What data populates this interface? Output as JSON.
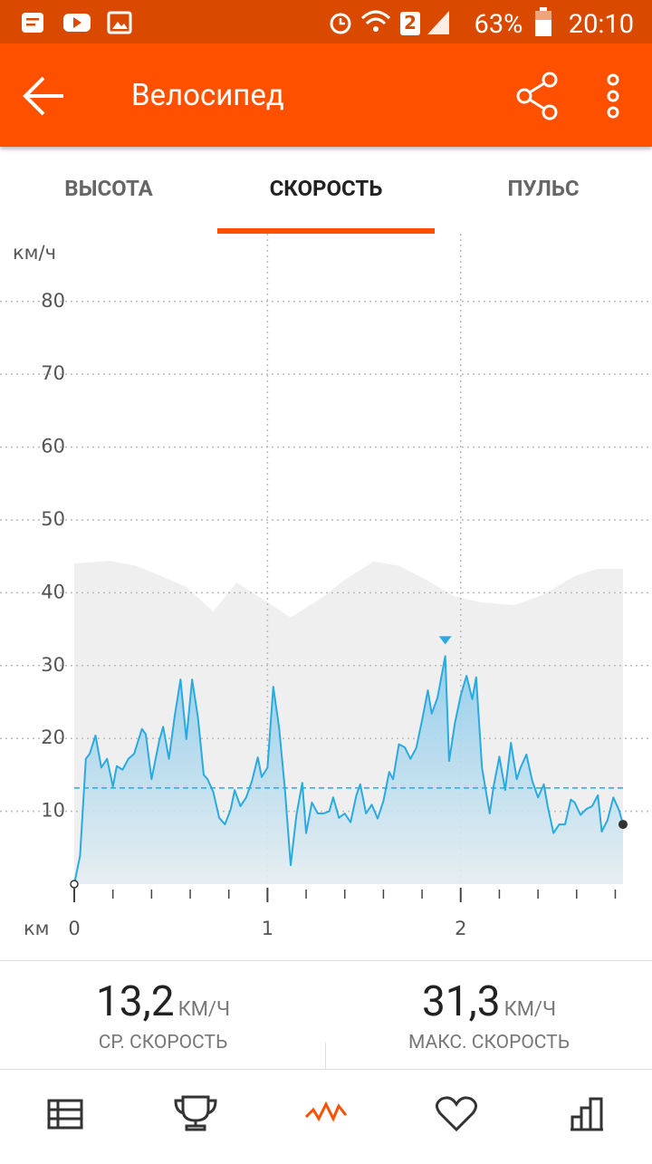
{
  "status_bar": {
    "sim": "2",
    "battery": "63%",
    "time": "20:10"
  },
  "toolbar": {
    "title": "Велосипед"
  },
  "tabs": [
    "ВЫСОТА",
    "СКОРОСТЬ",
    "ПУЛЬС"
  ],
  "chart_data": {
    "type": "area",
    "y_label": "км/ч",
    "x_label": "км",
    "xlim": [
      0,
      2.99
    ],
    "ylim": [
      0,
      89.3
    ],
    "yticks": [
      10,
      20,
      30,
      40,
      50,
      60,
      70,
      80
    ],
    "xticks": [
      0,
      1,
      2
    ],
    "x_minor_ticks": [
      0.2,
      0.4,
      0.6,
      0.8,
      1.2,
      1.4,
      1.6,
      1.8,
      2.2,
      2.4,
      2.6,
      2.8
    ],
    "grid": true,
    "speed": {
      "color": "#29aae1",
      "x": [
        0,
        0.03,
        0.06,
        0.08,
        0.11,
        0.14,
        0.17,
        0.2,
        0.22,
        0.25,
        0.28,
        0.31,
        0.35,
        0.37,
        0.4,
        0.44,
        0.46,
        0.49,
        0.52,
        0.55,
        0.58,
        0.61,
        0.64,
        0.67,
        0.69,
        0.72,
        0.75,
        0.78,
        0.81,
        0.83,
        0.86,
        0.89,
        0.92,
        0.95,
        0.97,
        1.0,
        1.03,
        1.06,
        1.09,
        1.12,
        1.15,
        1.18,
        1.2,
        1.23,
        1.26,
        1.29,
        1.32,
        1.34,
        1.37,
        1.4,
        1.43,
        1.46,
        1.48,
        1.51,
        1.54,
        1.57,
        1.6,
        1.63,
        1.65,
        1.68,
        1.71,
        1.74,
        1.77,
        1.8,
        1.83,
        1.85,
        1.88,
        1.92,
        1.94,
        1.97,
        2.0,
        2.03,
        2.06,
        2.08,
        2.11,
        2.15,
        2.17,
        2.2,
        2.23,
        2.26,
        2.29,
        2.31,
        2.34,
        2.37,
        2.4,
        2.43,
        2.45,
        2.48,
        2.51,
        2.54,
        2.57,
        2.59,
        2.62,
        2.65,
        2.68,
        2.71,
        2.73,
        2.76,
        2.79,
        2.82,
        2.84
      ],
      "values": [
        0,
        3.9,
        17.2,
        17.9,
        20.4,
        16,
        17.2,
        13.4,
        16.2,
        15.7,
        17.2,
        17.9,
        21.3,
        20.6,
        14.4,
        19.7,
        21.6,
        17.2,
        23.1,
        28.1,
        19.9,
        28.1,
        22.9,
        15,
        14.4,
        12.6,
        9.1,
        8.2,
        10.3,
        12.9,
        10.7,
        11.9,
        14.2,
        17.4,
        14.7,
        16,
        27.1,
        21.5,
        13.1,
        2.6,
        9.5,
        13.9,
        7,
        11.2,
        9.7,
        9.7,
        10,
        11.9,
        9.1,
        9.7,
        8.5,
        12.2,
        13.7,
        9.7,
        10.9,
        9,
        11.4,
        15.4,
        14.4,
        19.2,
        18.8,
        17.2,
        18.7,
        22.5,
        26.6,
        23.4,
        25.6,
        31.3,
        16.9,
        22.1,
        25.9,
        28.6,
        25.4,
        28.4,
        16,
        9.7,
        13.4,
        17.5,
        12.9,
        19.4,
        14.4,
        16,
        17.8,
        14.2,
        11.9,
        13.7,
        10.7,
        7,
        8.2,
        8.2,
        11.6,
        11.2,
        9.5,
        10.3,
        10.7,
        12.2,
        7.2,
        8.8,
        11.9,
        10.1,
        8.2
      ]
    },
    "elevation": {
      "color": "#efefef",
      "x": [
        0,
        0.18,
        0.32,
        0.44,
        0.58,
        0.72,
        0.84,
        1.0,
        1.12,
        1.28,
        1.4,
        1.55,
        1.68,
        1.82,
        1.96,
        2.1,
        2.28,
        2.43,
        2.59,
        2.71,
        2.84
      ],
      "values": [
        44.0,
        44.4,
        43.7,
        42.4,
        40.8,
        37.4,
        41.4,
        38.7,
        36.6,
        39.3,
        41.8,
        44.3,
        43.7,
        41.8,
        39.6,
        38.7,
        38.3,
        39.8,
        42.3,
        43.3,
        43.3
      ]
    }
  },
  "stats": [
    {
      "value": 13.2,
      "label": "13,2",
      "unit": "КМ/Ч",
      "caption": "СР. СКОРОСТЬ"
    },
    {
      "value": 31.3,
      "label": "31,3",
      "unit": "КМ/Ч",
      "caption": "МАКС. СКОРОСТЬ"
    }
  ]
}
